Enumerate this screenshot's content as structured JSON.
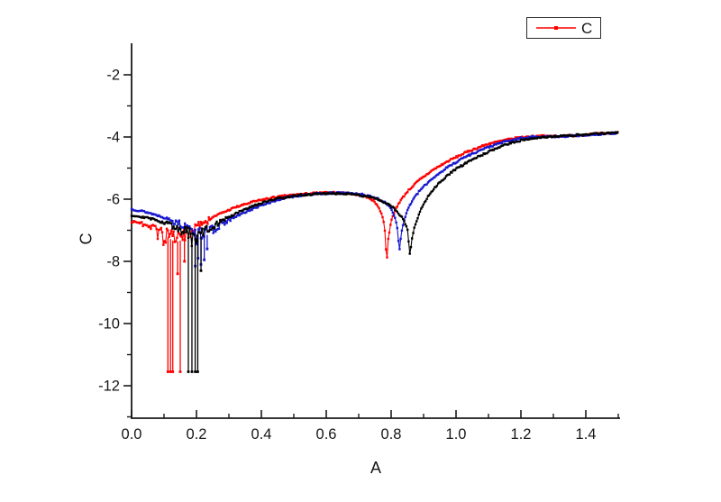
{
  "figure": {
    "background": "#ffffff",
    "axis_color": "#1a1a1a",
    "text_color": "#161616"
  },
  "legend": {
    "label": "C",
    "sample_color": "#ff0000",
    "position": "top-right"
  },
  "chart_data": {
    "type": "line",
    "title": "",
    "xlabel": "A",
    "ylabel": "C",
    "xlim": [
      0,
      1.5
    ],
    "ylim": [
      -13,
      -1
    ],
    "grid": false,
    "legend_entries": [
      {
        "label": "C",
        "color": "#ff0000",
        "marker": "square"
      }
    ],
    "x_major_ticks": [
      {
        "v": 0.0,
        "label": "0.0"
      },
      {
        "v": 0.2,
        "label": "0.2"
      },
      {
        "v": 0.4,
        "label": "0.4"
      },
      {
        "v": 0.6,
        "label": "0.6"
      },
      {
        "v": 0.8,
        "label": "0.8"
      },
      {
        "v": 1.0,
        "label": "1.0"
      },
      {
        "v": 1.2,
        "label": "1.2"
      },
      {
        "v": 1.4,
        "label": "1.4"
      }
    ],
    "x_minor_ticks": [
      0.1,
      0.3,
      0.5,
      0.7,
      0.9,
      1.1,
      1.3,
      1.5
    ],
    "y_major_ticks": [
      {
        "v": -2,
        "label": "-2"
      },
      {
        "v": -4,
        "label": "-4"
      },
      {
        "v": -6,
        "label": "-6"
      },
      {
        "v": -8,
        "label": "-8"
      },
      {
        "v": -10,
        "label": "-10"
      },
      {
        "v": -12,
        "label": "-12"
      }
    ],
    "y_minor_ticks": [
      -3,
      -5,
      -7,
      -9,
      -11,
      -13
    ],
    "series": [
      {
        "name": "red-curve",
        "color": "#ff0000",
        "marker": "square",
        "points": [
          [
            0,
            -6.72
          ],
          [
            0.03,
            -6.76
          ],
          [
            0.06,
            -6.84
          ],
          [
            0.09,
            -6.98
          ],
          [
            0.115,
            -7.15
          ],
          [
            0.135,
            -7.28
          ],
          [
            0.155,
            -7.22
          ],
          [
            0.175,
            -7.05
          ],
          [
            0.2,
            -6.88
          ],
          [
            0.23,
            -6.68
          ],
          [
            0.27,
            -6.48
          ],
          [
            0.32,
            -6.26
          ],
          [
            0.38,
            -6.07
          ],
          [
            0.44,
            -5.94
          ],
          [
            0.5,
            -5.86
          ],
          [
            0.56,
            -5.81
          ],
          [
            0.62,
            -5.79
          ],
          [
            0.67,
            -5.81
          ],
          [
            0.71,
            -5.88
          ],
          [
            0.74,
            -6.0
          ],
          [
            0.76,
            -6.22
          ],
          [
            0.775,
            -6.6
          ],
          [
            0.782,
            -7.1
          ],
          [
            0.786,
            -8.1
          ],
          [
            0.791,
            -7.3
          ],
          [
            0.798,
            -6.8
          ],
          [
            0.81,
            -6.4
          ],
          [
            0.825,
            -6.1
          ],
          [
            0.85,
            -5.75
          ],
          [
            0.885,
            -5.4
          ],
          [
            0.93,
            -5.05
          ],
          [
            0.98,
            -4.75
          ],
          [
            1.04,
            -4.45
          ],
          [
            1.1,
            -4.22
          ],
          [
            1.16,
            -4.08
          ],
          [
            1.21,
            -4.0
          ],
          [
            1.26,
            -3.97
          ],
          [
            1.31,
            -3.98
          ],
          [
            1.37,
            -3.95
          ],
          [
            1.43,
            -3.9
          ],
          [
            1.5,
            -3.86
          ]
        ],
        "notch1_x": 0.135,
        "notch2_x": 0.786,
        "notch2_min": -8.1,
        "droplines": [
          [
            0.112,
            -11.55
          ],
          [
            0.12,
            -11.55
          ],
          [
            0.127,
            -11.55
          ],
          [
            0.15,
            -11.55
          ],
          [
            0.142,
            -8.4
          ],
          [
            0.163,
            -8.0
          ]
        ],
        "noise": {
          "seed": 7,
          "base_amp": 0.028,
          "cloud_center": 0.135,
          "cloud_width": 0.12,
          "cloud_amp": 0.2,
          "outlier_prob": 0.22,
          "outlier_amp": 0.5
        }
      },
      {
        "name": "blue-curve",
        "color": "#1717cf",
        "marker": "square",
        "points": [
          [
            0,
            -6.32
          ],
          [
            0.04,
            -6.4
          ],
          [
            0.08,
            -6.52
          ],
          [
            0.12,
            -6.66
          ],
          [
            0.16,
            -6.84
          ],
          [
            0.19,
            -7.0
          ],
          [
            0.215,
            -7.12
          ],
          [
            0.24,
            -7.02
          ],
          [
            0.27,
            -6.85
          ],
          [
            0.31,
            -6.62
          ],
          [
            0.36,
            -6.37
          ],
          [
            0.42,
            -6.12
          ],
          [
            0.48,
            -5.94
          ],
          [
            0.54,
            -5.85
          ],
          [
            0.6,
            -5.81
          ],
          [
            0.66,
            -5.8
          ],
          [
            0.71,
            -5.85
          ],
          [
            0.75,
            -5.95
          ],
          [
            0.78,
            -6.1
          ],
          [
            0.8,
            -6.3
          ],
          [
            0.813,
            -6.6
          ],
          [
            0.82,
            -7.0
          ],
          [
            0.825,
            -7.68
          ],
          [
            0.83,
            -7.2
          ],
          [
            0.838,
            -6.75
          ],
          [
            0.85,
            -6.35
          ],
          [
            0.865,
            -6.05
          ],
          [
            0.89,
            -5.7
          ],
          [
            0.925,
            -5.35
          ],
          [
            0.97,
            -5.0
          ],
          [
            1.02,
            -4.68
          ],
          [
            1.08,
            -4.4
          ],
          [
            1.14,
            -4.18
          ],
          [
            1.2,
            -4.04
          ],
          [
            1.25,
            -3.99
          ],
          [
            1.31,
            -3.99
          ],
          [
            1.38,
            -3.95
          ],
          [
            1.44,
            -3.91
          ],
          [
            1.5,
            -3.87
          ]
        ],
        "notch1_x": 0.215,
        "notch2_x": 0.825,
        "notch2_min": -7.68,
        "droplines": [
          [
            0.196,
            -8.15
          ],
          [
            0.205,
            -7.9
          ],
          [
            0.214,
            -8.1
          ],
          [
            0.224,
            -7.95
          ],
          [
            0.233,
            -7.6
          ]
        ],
        "noise": {
          "seed": 13,
          "base_amp": 0.028,
          "cloud_center": 0.215,
          "cloud_width": 0.11,
          "cloud_amp": 0.18,
          "outlier_prob": 0.2,
          "outlier_amp": 0.4
        }
      },
      {
        "name": "black-curve",
        "color": "#000000",
        "marker": "square",
        "points": [
          [
            0,
            -6.52
          ],
          [
            0.04,
            -6.58
          ],
          [
            0.08,
            -6.68
          ],
          [
            0.12,
            -6.82
          ],
          [
            0.15,
            -6.95
          ],
          [
            0.175,
            -7.08
          ],
          [
            0.195,
            -7.18
          ],
          [
            0.215,
            -7.08
          ],
          [
            0.245,
            -6.9
          ],
          [
            0.28,
            -6.68
          ],
          [
            0.33,
            -6.42
          ],
          [
            0.39,
            -6.16
          ],
          [
            0.45,
            -5.98
          ],
          [
            0.52,
            -5.87
          ],
          [
            0.59,
            -5.82
          ],
          [
            0.65,
            -5.81
          ],
          [
            0.7,
            -5.86
          ],
          [
            0.745,
            -5.96
          ],
          [
            0.78,
            -6.1
          ],
          [
            0.81,
            -6.3
          ],
          [
            0.835,
            -6.6
          ],
          [
            0.85,
            -6.95
          ],
          [
            0.858,
            -7.78
          ],
          [
            0.864,
            -7.3
          ],
          [
            0.872,
            -6.9
          ],
          [
            0.885,
            -6.5
          ],
          [
            0.9,
            -6.15
          ],
          [
            0.92,
            -5.8
          ],
          [
            0.95,
            -5.45
          ],
          [
            0.99,
            -5.1
          ],
          [
            1.04,
            -4.78
          ],
          [
            1.1,
            -4.48
          ],
          [
            1.16,
            -4.22
          ],
          [
            1.22,
            -4.06
          ],
          [
            1.27,
            -4.0
          ],
          [
            1.33,
            -3.97
          ],
          [
            1.4,
            -3.92
          ],
          [
            1.46,
            -3.88
          ],
          [
            1.5,
            -3.85
          ]
        ],
        "notch1_x": 0.19,
        "notch2_x": 0.858,
        "notch2_min": -7.78,
        "droplines": [
          [
            0.175,
            -11.55
          ],
          [
            0.186,
            -11.55
          ],
          [
            0.196,
            -11.55
          ],
          [
            0.204,
            -11.55
          ],
          [
            0.214,
            -8.3
          ]
        ],
        "noise": {
          "seed": 29,
          "base_amp": 0.028,
          "cloud_center": 0.19,
          "cloud_width": 0.11,
          "cloud_amp": 0.19,
          "outlier_prob": 0.2,
          "outlier_amp": 0.45
        }
      }
    ]
  }
}
